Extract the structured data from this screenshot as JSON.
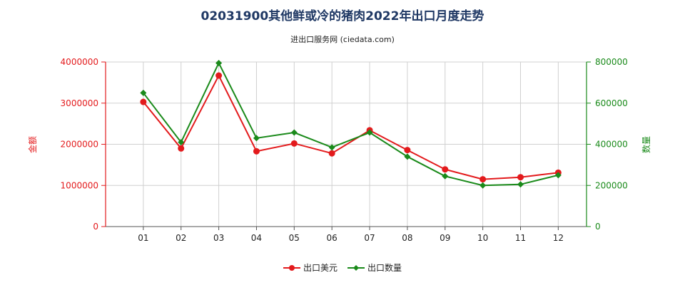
{
  "chart_data": {
    "type": "line",
    "title": "02031900其他鲜或冷的猪肉2022年出口月度走势",
    "subtitle": "进出口服务网 (ciedata.com)",
    "categories": [
      "01",
      "02",
      "03",
      "04",
      "05",
      "06",
      "07",
      "08",
      "09",
      "10",
      "11",
      "12"
    ],
    "y_left_label": "金额",
    "y_right_label": "数量",
    "y_left_ticks": [
      "4000000",
      "3000000",
      "2000000",
      "1000000",
      "0"
    ],
    "y_right_ticks": [
      "800000",
      "600000",
      "400000",
      "200000",
      "0"
    ],
    "y_left_lim": [
      0,
      4000000
    ],
    "y_right_lim": [
      0,
      800000
    ],
    "grid": true,
    "legend_position": "bottom",
    "series": [
      {
        "name": "出口美元",
        "axis": "left",
        "color": "#e31a1c",
        "values": [
          3030000,
          1900000,
          3670000,
          1830000,
          2020000,
          1780000,
          2340000,
          1860000,
          1390000,
          1150000,
          1200000,
          1310000
        ]
      },
      {
        "name": "出口数量",
        "axis": "right",
        "color": "#1a8a1a",
        "values": [
          650000,
          410000,
          795000,
          430000,
          457000,
          385000,
          457000,
          340000,
          245000,
          200000,
          205000,
          250000
        ]
      }
    ]
  }
}
